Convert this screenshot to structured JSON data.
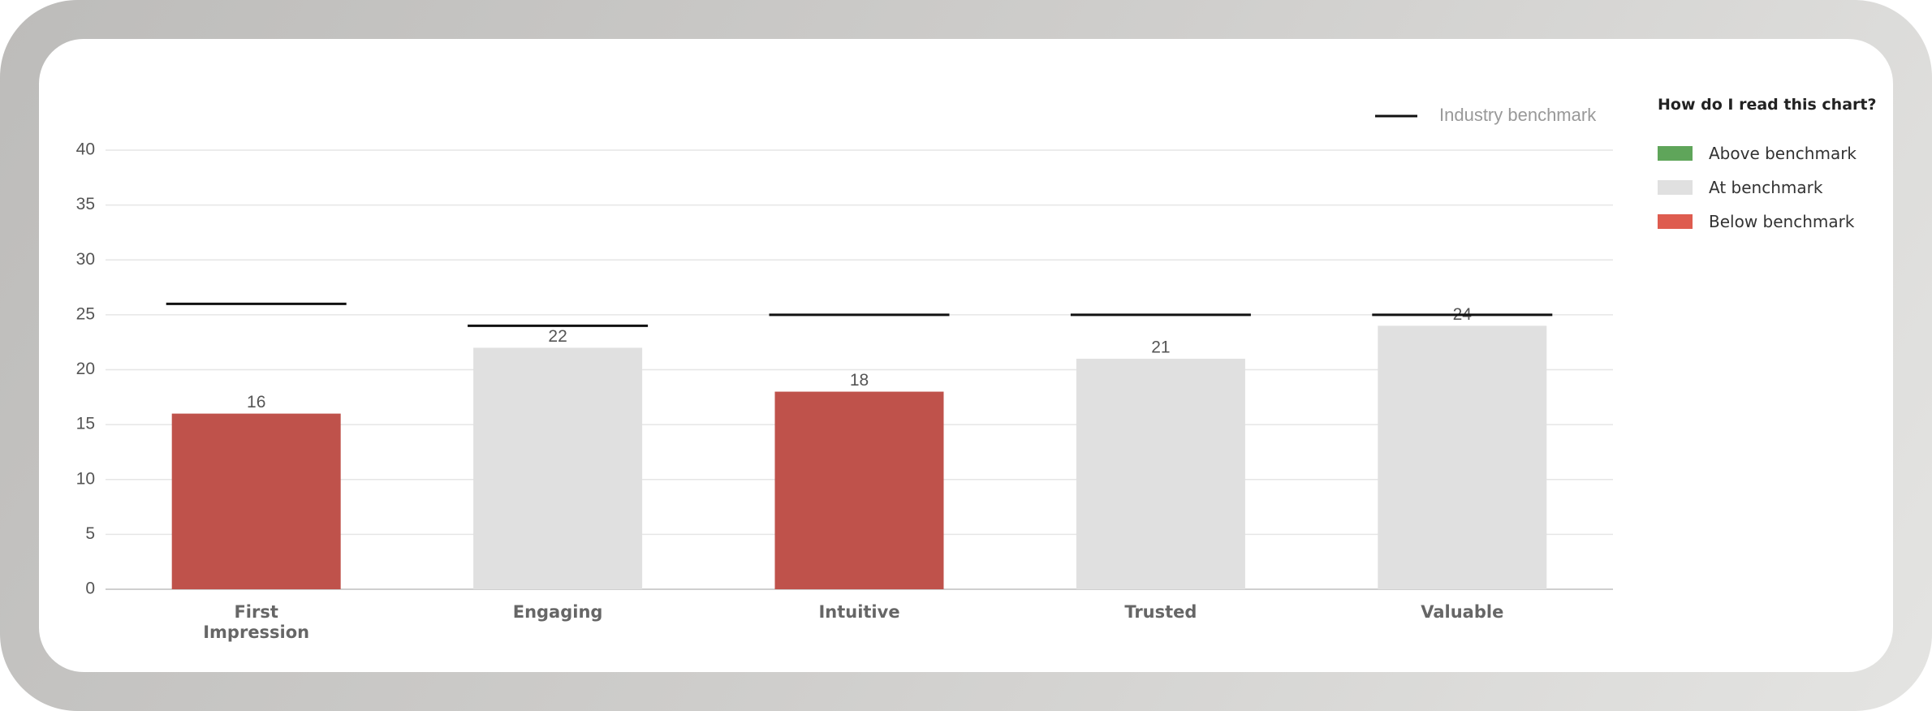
{
  "chart_data": {
    "type": "bar",
    "categories": [
      "First Impression",
      "Engaging",
      "Intuitive",
      "Trusted",
      "Valuable"
    ],
    "values": [
      16,
      22,
      18,
      21,
      24
    ],
    "colors": [
      "#bf524b",
      "#e0e0e0",
      "#bf524b",
      "#e0e0e0",
      "#e0e0e0"
    ],
    "benchmark": {
      "name": "Industry benchmark",
      "color": "#111111",
      "values": [
        26,
        24,
        25,
        25,
        25
      ]
    },
    "ylim": [
      0,
      40
    ],
    "yticks": [
      0,
      5,
      10,
      15,
      20,
      25,
      30,
      35,
      40
    ],
    "grid": true
  },
  "key": {
    "title": "How do I read this chart?",
    "items": [
      {
        "label": "Above benchmark",
        "color": "#5fa55a"
      },
      {
        "label": "At benchmark",
        "color": "#e0e0e0"
      },
      {
        "label": "Below benchmark",
        "color": "#de5c4f"
      }
    ]
  }
}
